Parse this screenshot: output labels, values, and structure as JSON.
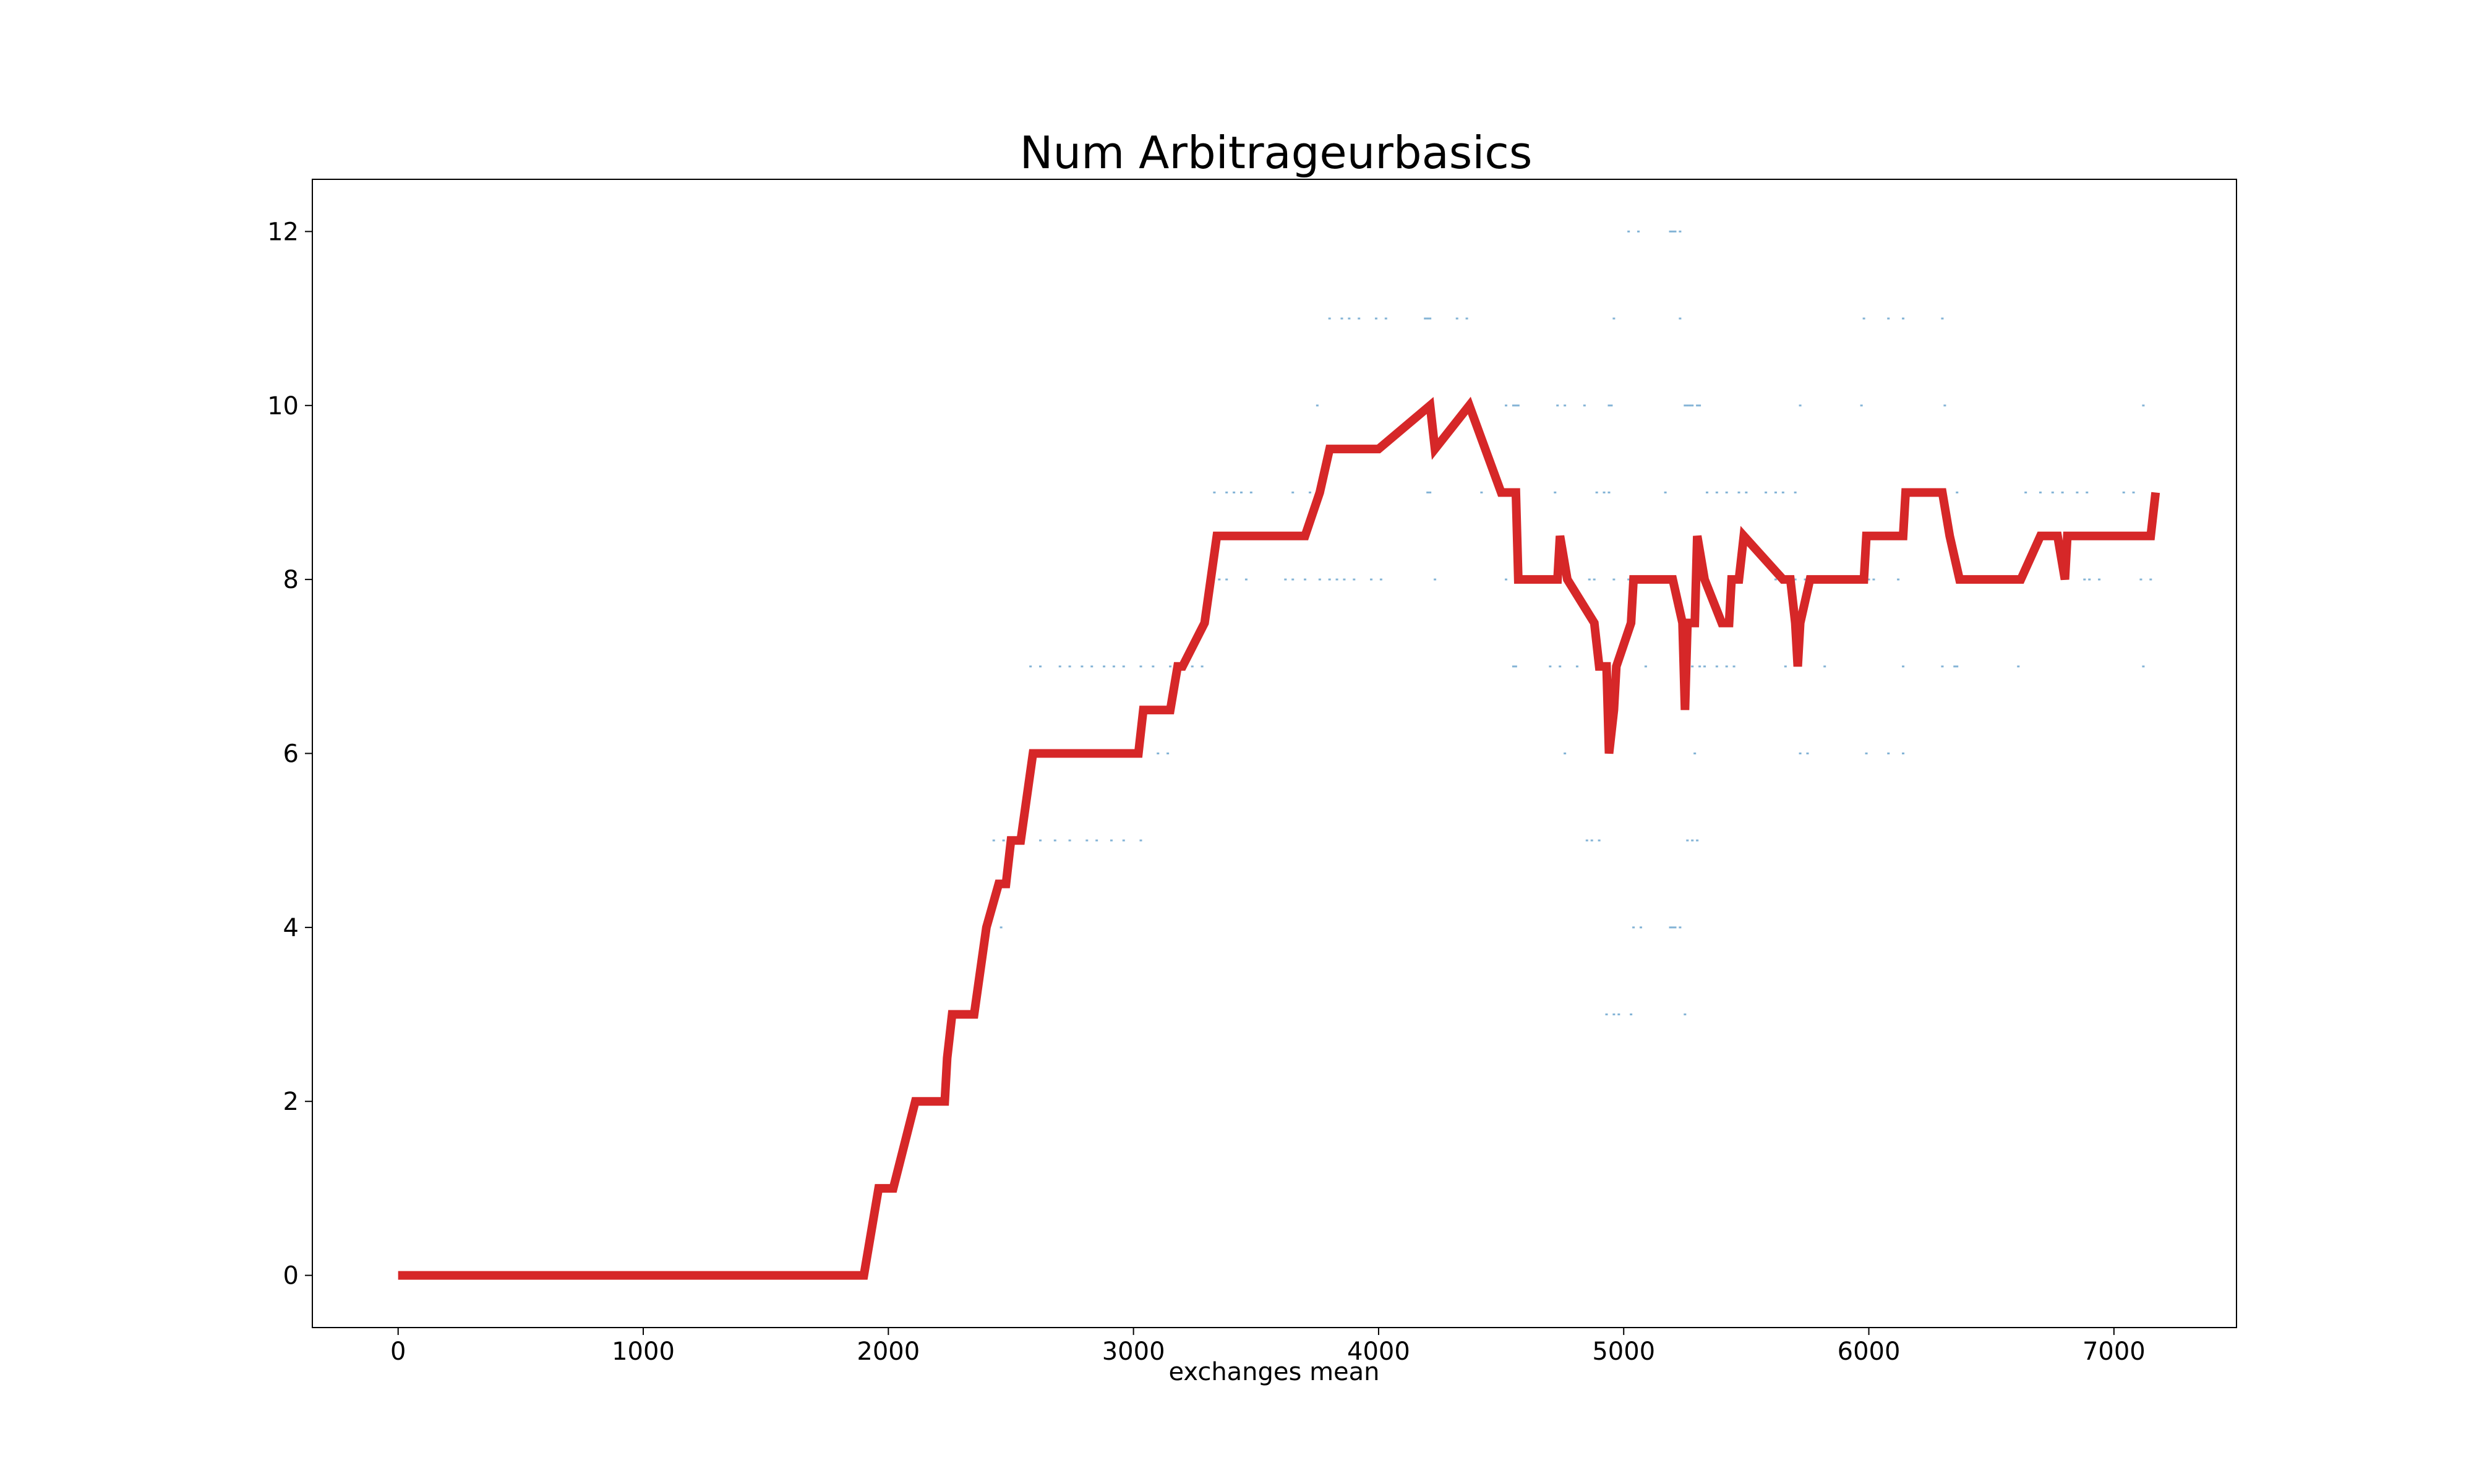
{
  "chart_data": {
    "type": "line",
    "title": "Num Arbitrageurbasics",
    "xlabel": "exchanges mean",
    "ylabel": "",
    "xlim": [
      -350,
      7500
    ],
    "ylim": [
      -0.6,
      12.6
    ],
    "xticks": [
      0,
      1000,
      2000,
      3000,
      4000,
      5000,
      6000,
      7000
    ],
    "yticks": [
      0,
      2,
      4,
      6,
      8,
      10,
      12
    ],
    "grid": false,
    "legend": "none",
    "series": [
      {
        "kind": "line",
        "color": "#d62728",
        "points": [
          [
            0,
            0
          ],
          [
            1900,
            0
          ],
          [
            1960,
            1
          ],
          [
            2020,
            1
          ],
          [
            2110,
            2
          ],
          [
            2230,
            2
          ],
          [
            2240,
            2.5
          ],
          [
            2260,
            3
          ],
          [
            2350,
            3
          ],
          [
            2400,
            4
          ],
          [
            2450,
            4.5
          ],
          [
            2480,
            4.5
          ],
          [
            2500,
            5
          ],
          [
            2540,
            5
          ],
          [
            2590,
            6
          ],
          [
            3020,
            6
          ],
          [
            3040,
            6.5
          ],
          [
            3150,
            6.5
          ],
          [
            3180,
            7
          ],
          [
            3200,
            7
          ],
          [
            3290,
            7.5
          ],
          [
            3340,
            8.5
          ],
          [
            3700,
            8.5
          ],
          [
            3760,
            9
          ],
          [
            3800,
            9.5
          ],
          [
            4000,
            9.5
          ],
          [
            4210,
            10
          ],
          [
            4230,
            9.5
          ],
          [
            4370,
            10
          ],
          [
            4500,
            9
          ],
          [
            4560,
            9
          ],
          [
            4570,
            8
          ],
          [
            4730,
            8
          ],
          [
            4740,
            8.5
          ],
          [
            4770,
            8
          ],
          [
            4880,
            7.5
          ],
          [
            4900,
            7
          ],
          [
            4930,
            7
          ],
          [
            4940,
            6
          ],
          [
            4960,
            6.5
          ],
          [
            4970,
            7
          ],
          [
            5030,
            7.5
          ],
          [
            5040,
            8
          ],
          [
            5200,
            8
          ],
          [
            5240,
            7.5
          ],
          [
            5250,
            6.5
          ],
          [
            5260,
            7.5
          ],
          [
            5290,
            7.5
          ],
          [
            5300,
            8.5
          ],
          [
            5330,
            8
          ],
          [
            5400,
            7.5
          ],
          [
            5430,
            7.5
          ],
          [
            5440,
            8
          ],
          [
            5470,
            8
          ],
          [
            5490,
            8.5
          ],
          [
            5650,
            8
          ],
          [
            5680,
            8
          ],
          [
            5700,
            7.5
          ],
          [
            5710,
            7
          ],
          [
            5720,
            7.5
          ],
          [
            5760,
            8
          ],
          [
            5980,
            8
          ],
          [
            5990,
            8.5
          ],
          [
            6140,
            8.5
          ],
          [
            6150,
            9
          ],
          [
            6300,
            9
          ],
          [
            6330,
            8.5
          ],
          [
            6370,
            8
          ],
          [
            6620,
            8
          ],
          [
            6700,
            8.5
          ],
          [
            6770,
            8.5
          ],
          [
            6800,
            8
          ],
          [
            6810,
            8.5
          ],
          [
            7150,
            8.5
          ],
          [
            7170,
            9
          ]
        ]
      },
      {
        "kind": "scatter",
        "color": "#1f77b4",
        "points": [
          [
            5020,
            12
          ],
          [
            5060,
            12
          ],
          [
            5190,
            12
          ],
          [
            5200,
            12
          ],
          [
            5210,
            12
          ],
          [
            5230,
            12
          ],
          [
            3800,
            11
          ],
          [
            3850,
            11
          ],
          [
            3880,
            11
          ],
          [
            3920,
            11
          ],
          [
            3990,
            11
          ],
          [
            4030,
            11
          ],
          [
            4190,
            11
          ],
          [
            4200,
            11
          ],
          [
            4210,
            11
          ],
          [
            4320,
            11
          ],
          [
            4360,
            11
          ],
          [
            4960,
            11
          ],
          [
            5230,
            11
          ],
          [
            5980,
            11
          ],
          [
            6080,
            11
          ],
          [
            6140,
            11
          ],
          [
            6300,
            11
          ],
          [
            3750,
            10
          ],
          [
            4520,
            10
          ],
          [
            4550,
            10
          ],
          [
            4560,
            10
          ],
          [
            4570,
            10
          ],
          [
            4730,
            10
          ],
          [
            4760,
            10
          ],
          [
            4840,
            10
          ],
          [
            4940,
            10
          ],
          [
            4950,
            10
          ],
          [
            5250,
            10
          ],
          [
            5260,
            10
          ],
          [
            5270,
            10
          ],
          [
            5280,
            10
          ],
          [
            5300,
            10
          ],
          [
            5310,
            10
          ],
          [
            5720,
            10
          ],
          [
            5970,
            10
          ],
          [
            6310,
            10
          ],
          [
            7120,
            10
          ],
          [
            3330,
            9
          ],
          [
            3380,
            9
          ],
          [
            3410,
            9
          ],
          [
            3440,
            9
          ],
          [
            3480,
            9
          ],
          [
            3650,
            9
          ],
          [
            3720,
            9
          ],
          [
            4200,
            9
          ],
          [
            4210,
            9
          ],
          [
            4420,
            9
          ],
          [
            4720,
            9
          ],
          [
            4890,
            9
          ],
          [
            4920,
            9
          ],
          [
            4940,
            9
          ],
          [
            5170,
            9
          ],
          [
            5340,
            9
          ],
          [
            5380,
            9
          ],
          [
            5420,
            9
          ],
          [
            5470,
            9
          ],
          [
            5500,
            9
          ],
          [
            5580,
            9
          ],
          [
            5620,
            9
          ],
          [
            5650,
            9
          ],
          [
            5700,
            9
          ],
          [
            6360,
            9
          ],
          [
            6640,
            9
          ],
          [
            6700,
            9
          ],
          [
            6750,
            9
          ],
          [
            6790,
            9
          ],
          [
            6850,
            9
          ],
          [
            6890,
            9
          ],
          [
            7040,
            9
          ],
          [
            7080,
            9
          ],
          [
            3320,
            8
          ],
          [
            3350,
            8
          ],
          [
            3380,
            8
          ],
          [
            3460,
            8
          ],
          [
            3620,
            8
          ],
          [
            3650,
            8
          ],
          [
            3700,
            8
          ],
          [
            3760,
            8
          ],
          [
            3800,
            8
          ],
          [
            3830,
            8
          ],
          [
            3860,
            8
          ],
          [
            3900,
            8
          ],
          [
            3970,
            8
          ],
          [
            4010,
            8
          ],
          [
            4230,
            8
          ],
          [
            4520,
            8
          ],
          [
            4650,
            8
          ],
          [
            4700,
            8
          ],
          [
            4780,
            8
          ],
          [
            4860,
            8
          ],
          [
            4880,
            8
          ],
          [
            4960,
            8
          ],
          [
            5020,
            8
          ],
          [
            5480,
            8
          ],
          [
            5620,
            8
          ],
          [
            5700,
            8
          ],
          [
            5740,
            8
          ],
          [
            5880,
            8
          ],
          [
            5930,
            8
          ],
          [
            6000,
            8
          ],
          [
            6020,
            8
          ],
          [
            6120,
            8
          ],
          [
            6380,
            8
          ],
          [
            6450,
            8
          ],
          [
            6520,
            8
          ],
          [
            6560,
            8
          ],
          [
            6880,
            8
          ],
          [
            6900,
            8
          ],
          [
            6940,
            8
          ],
          [
            7110,
            8
          ],
          [
            7150,
            8
          ],
          [
            2580,
            7
          ],
          [
            2620,
            7
          ],
          [
            2700,
            7
          ],
          [
            2740,
            7
          ],
          [
            2790,
            7
          ],
          [
            2830,
            7
          ],
          [
            2880,
            7
          ],
          [
            2920,
            7
          ],
          [
            2960,
            7
          ],
          [
            3030,
            7
          ],
          [
            3080,
            7
          ],
          [
            3150,
            7
          ],
          [
            3200,
            7
          ],
          [
            3240,
            7
          ],
          [
            3280,
            7
          ],
          [
            4550,
            7
          ],
          [
            4560,
            7
          ],
          [
            4700,
            7
          ],
          [
            4740,
            7
          ],
          [
            4810,
            7
          ],
          [
            5090,
            7
          ],
          [
            5280,
            7
          ],
          [
            5310,
            7
          ],
          [
            5330,
            7
          ],
          [
            5380,
            7
          ],
          [
            5420,
            7
          ],
          [
            5450,
            7
          ],
          [
            5660,
            7
          ],
          [
            5820,
            7
          ],
          [
            6140,
            7
          ],
          [
            6300,
            7
          ],
          [
            6350,
            7
          ],
          [
            6360,
            7
          ],
          [
            6610,
            7
          ],
          [
            7120,
            7
          ],
          [
            3100,
            6
          ],
          [
            3140,
            6
          ],
          [
            4760,
            6
          ],
          [
            5290,
            6
          ],
          [
            5720,
            6
          ],
          [
            5750,
            6
          ],
          [
            5990,
            6
          ],
          [
            6080,
            6
          ],
          [
            6140,
            6
          ],
          [
            2430,
            5
          ],
          [
            2470,
            5
          ],
          [
            2510,
            5
          ],
          [
            2550,
            5
          ],
          [
            2620,
            5
          ],
          [
            2680,
            5
          ],
          [
            2740,
            5
          ],
          [
            2810,
            5
          ],
          [
            2850,
            5
          ],
          [
            2910,
            5
          ],
          [
            2960,
            5
          ],
          [
            3030,
            5
          ],
          [
            4850,
            5
          ],
          [
            4870,
            5
          ],
          [
            4900,
            5
          ],
          [
            5260,
            5
          ],
          [
            5280,
            5
          ],
          [
            5300,
            5
          ],
          [
            2460,
            4
          ],
          [
            5040,
            4
          ],
          [
            5070,
            4
          ],
          [
            5190,
            4
          ],
          [
            5200,
            4
          ],
          [
            5210,
            4
          ],
          [
            5230,
            4
          ],
          [
            4930,
            3
          ],
          [
            4960,
            3
          ],
          [
            4980,
            3
          ],
          [
            5030,
            3
          ],
          [
            5250,
            3
          ]
        ]
      }
    ]
  }
}
